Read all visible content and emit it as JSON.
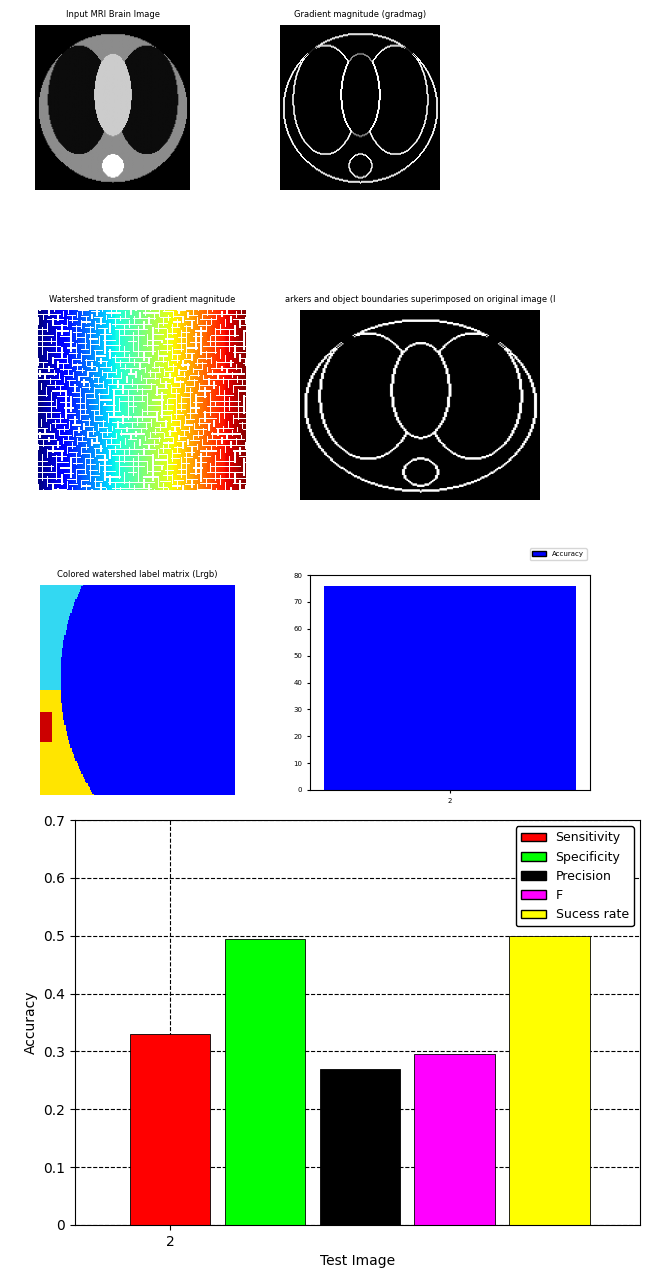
{
  "panels": [
    {
      "title": "Input MRI Brain Image"
    },
    {
      "title": "Gradient magnitude (gradmag)"
    },
    {
      "title": "Watershed transform of gradient magnitude"
    },
    {
      "title": "arkers and object boundaries superimposed on original image (I"
    },
    {
      "title": "Colored watershed label matrix (Lrgb)"
    }
  ],
  "chart_data": [
    {
      "type": "bar",
      "categories": [
        "2"
      ],
      "series": [
        {
          "name": "Accuracy",
          "color": "#0000ff",
          "values": [
            76
          ]
        }
      ],
      "ylim": [
        0,
        80
      ],
      "yticks": [
        0,
        10,
        20,
        30,
        40,
        50,
        60,
        70,
        80
      ],
      "legend": "upper right"
    },
    {
      "type": "bar",
      "xlabel": "Test Image",
      "ylabel": "Accuracy",
      "categories": [
        "2"
      ],
      "series": [
        {
          "name": "Sensitivity",
          "color": "#ff0000",
          "values": [
            0.33
          ]
        },
        {
          "name": "Specificity",
          "color": "#00ff00",
          "values": [
            0.495
          ]
        },
        {
          "name": "Precision",
          "color": "#000000",
          "values": [
            0.27
          ]
        },
        {
          "name": "F",
          "color": "#ff00ff",
          "values": [
            0.295
          ]
        },
        {
          "name": "Sucess rate",
          "color": "#ffff00",
          "values": [
            0.5
          ]
        }
      ],
      "ylim": [
        0,
        0.7
      ],
      "yticks": [
        0,
        0.1,
        0.2,
        0.3,
        0.4,
        0.5,
        0.6,
        0.7
      ],
      "grid": true,
      "legend": "upper right"
    }
  ]
}
